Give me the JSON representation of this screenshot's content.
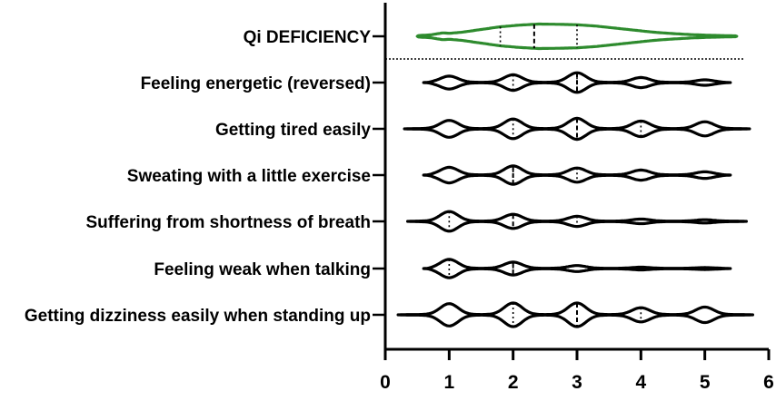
{
  "chart_data": {
    "type": "violin",
    "title": "",
    "xlabel": "",
    "ylabel": "",
    "xlim": [
      0,
      6
    ],
    "xticks": [
      0,
      1,
      2,
      3,
      4,
      5,
      6
    ],
    "grid": false,
    "colors": {
      "summary": "#2e8b2e",
      "items": "#000000"
    },
    "categories": [
      "Qi DEFICIENCY",
      "Feeling energetic (reversed)",
      "Getting tired easily",
      "Sweating with a little exercise",
      "Suffering from shortness of breath",
      "Feeling weak when talking",
      "Getting dizziness easily when standing up"
    ],
    "series": [
      {
        "category": "Qi DEFICIENCY",
        "kind": "summary",
        "range": [
          0.5,
          5.5
        ],
        "q1": 1.8,
        "median": 2.33,
        "q3": 3.0,
        "density": [
          [
            0.5,
            0.05
          ],
          [
            0.7,
            0.1
          ],
          [
            0.9,
            0.25
          ],
          [
            1.0,
            0.22
          ],
          [
            1.2,
            0.3
          ],
          [
            1.5,
            0.5
          ],
          [
            1.8,
            0.7
          ],
          [
            2.1,
            0.82
          ],
          [
            2.4,
            0.9
          ],
          [
            2.7,
            0.88
          ],
          [
            3.0,
            0.85
          ],
          [
            3.3,
            0.75
          ],
          [
            3.6,
            0.6
          ],
          [
            3.9,
            0.45
          ],
          [
            4.2,
            0.3
          ],
          [
            4.5,
            0.2
          ],
          [
            4.8,
            0.12
          ],
          [
            5.1,
            0.07
          ],
          [
            5.5,
            0.03
          ]
        ]
      },
      {
        "category": "Feeling energetic (reversed)",
        "kind": "item",
        "range": [
          0.6,
          5.4
        ],
        "q1": 2.0,
        "median": 3.0,
        "q3": 3.0,
        "peaks": [
          [
            1,
            0.45
          ],
          [
            2,
            0.55
          ],
          [
            3,
            0.7
          ],
          [
            4,
            0.35
          ],
          [
            5,
            0.18
          ]
        ]
      },
      {
        "category": "Getting tired easily",
        "kind": "item",
        "range": [
          0.3,
          5.7
        ],
        "q1": 2.0,
        "median": 3.0,
        "q3": 4.0,
        "peaks": [
          [
            1,
            0.6
          ],
          [
            2,
            0.7
          ],
          [
            3,
            0.75
          ],
          [
            4,
            0.55
          ],
          [
            5,
            0.5
          ]
        ]
      },
      {
        "category": "Sweating with a little exercise",
        "kind": "item",
        "range": [
          0.6,
          5.4
        ],
        "q1": 2.0,
        "median": 2.0,
        "q3": 3.0,
        "peaks": [
          [
            1,
            0.55
          ],
          [
            2,
            0.65
          ],
          [
            3,
            0.5
          ],
          [
            4,
            0.35
          ],
          [
            5,
            0.22
          ]
        ]
      },
      {
        "category": "Suffering from shortness of breath",
        "kind": "item",
        "range": [
          0.35,
          5.65
        ],
        "q1": 1.0,
        "median": 2.0,
        "q3": 3.0,
        "peaks": [
          [
            1,
            0.7
          ],
          [
            2,
            0.5
          ],
          [
            3,
            0.35
          ],
          [
            4,
            0.15
          ],
          [
            5,
            0.1
          ]
        ]
      },
      {
        "category": "Feeling weak when talking",
        "kind": "item",
        "range": [
          0.6,
          5.4
        ],
        "q1": 1.0,
        "median": 2.0,
        "q3": 2.0,
        "peaks": [
          [
            1,
            0.65
          ],
          [
            2,
            0.45
          ],
          [
            3,
            0.2
          ],
          [
            4,
            0.08
          ],
          [
            5,
            0.05
          ]
        ]
      },
      {
        "category": "Getting dizziness easily when standing up",
        "kind": "item",
        "range": [
          0.2,
          5.75
        ],
        "q1": 2.0,
        "median": 3.0,
        "q3": 4.0,
        "peaks": [
          [
            1,
            0.8
          ],
          [
            2,
            0.85
          ],
          [
            3,
            0.85
          ],
          [
            4,
            0.5
          ],
          [
            5,
            0.55
          ]
        ]
      }
    ]
  }
}
